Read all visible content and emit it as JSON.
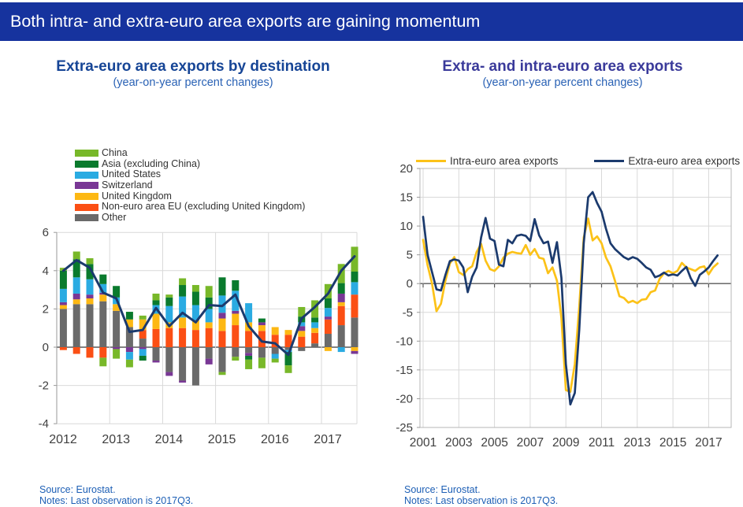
{
  "header": {
    "title": "Both intra- and extra-euro area exports are gaining momentum",
    "bg_color": "#16339e",
    "text_color": "#ffffff"
  },
  "left_panel": {
    "title": "Extra-euro area exports by destination",
    "subtitle": "(year-on-year percent changes)",
    "title_color": "#164596",
    "subtitle_color": "#2a62b5",
    "source": "Source: Eurostat.",
    "notes": "Notes: Last observation is 2017Q3."
  },
  "right_panel": {
    "title": "Extra- and intra-euro area exports",
    "subtitle": "(year-on-year percent changes)",
    "title_color": "#3a3a9a",
    "subtitle_color": "#2a62b5",
    "source": "Source: Eurostat.",
    "notes": "Notes: Last observation is 2017Q3."
  },
  "footnote_color": "#1d5fb5",
  "chart_data": [
    {
      "type": "bar",
      "stacked": true,
      "title": "Extra-euro area exports by destination",
      "subtitle": "(year-on-year percent changes)",
      "categories": [
        "2012Q1",
        "2012Q2",
        "2012Q3",
        "2012Q4",
        "2013Q1",
        "2013Q2",
        "2013Q3",
        "2013Q4",
        "2014Q1",
        "2014Q2",
        "2014Q3",
        "2014Q4",
        "2015Q1",
        "2015Q2",
        "2015Q3",
        "2015Q4",
        "2016Q1",
        "2016Q2",
        "2016Q3",
        "2016Q4",
        "2017Q1",
        "2017Q2",
        "2017Q3"
      ],
      "x_tick_labels": [
        "2012",
        "2013",
        "2014",
        "2015",
        "2016",
        "2017"
      ],
      "ylim": [
        -4,
        6
      ],
      "yticks": [
        6,
        4,
        2,
        0,
        -2,
        -4
      ],
      "grid": true,
      "legend_position": "top-left",
      "series": [
        {
          "name": "Other",
          "color": "#6a6a6a",
          "values": [
            2.0,
            2.25,
            2.25,
            2.4,
            1.9,
            1.05,
            0.45,
            -0.7,
            -1.3,
            -1.75,
            -2.0,
            -0.6,
            -1.3,
            -0.5,
            -0.3,
            -0.55,
            -0.35,
            -0.15,
            -0.2,
            0.2,
            0.7,
            1.15,
            1.55
          ]
        },
        {
          "name": "Non-euro area EU (excluding United Kingdom)",
          "color": "#fb4f14",
          "values": [
            -0.15,
            -0.35,
            -0.55,
            -0.55,
            0,
            0,
            0.45,
            0.95,
            1.0,
            1.0,
            0.9,
            1.0,
            0.85,
            1.15,
            0.85,
            0.85,
            0.65,
            0.65,
            0.55,
            0.55,
            0.75,
            1.0,
            1.2
          ]
        },
        {
          "name": "United Kingdom",
          "color": "#fdb813",
          "values": [
            0.2,
            0.25,
            0.3,
            0.35,
            0.35,
            0.4,
            0.55,
            0.8,
            0.3,
            0.55,
            0.5,
            0.3,
            0.65,
            0.6,
            0.45,
            0.3,
            0.4,
            0.25,
            0.3,
            0.25,
            -0.2,
            0.2,
            -0.2
          ]
        },
        {
          "name": "Switzerland",
          "color": "#793795",
          "values": [
            0.15,
            0.3,
            0.2,
            0.1,
            -0.1,
            -0.25,
            -0.1,
            -0.1,
            -0.2,
            -0.1,
            0,
            -0.3,
            0.3,
            0.15,
            -0.15,
            0.15,
            0,
            0,
            0.25,
            0,
            0.15,
            0.45,
            -0.15
          ]
        },
        {
          "name": "United States",
          "color": "#2aabe2",
          "values": [
            0.7,
            0.85,
            0.8,
            0.45,
            0.35,
            -0.4,
            -0.35,
            0.45,
            0.85,
            1.1,
            0.8,
            0.7,
            0.9,
            1.05,
            1.0,
            0,
            -0.25,
            -0.1,
            0.2,
            0.3,
            0.45,
            -0.25,
            0.65
          ]
        },
        {
          "name": "Asia (excluding China)",
          "color": "#0a7a2d",
          "values": [
            0.95,
            0.95,
            0.8,
            0.5,
            0.6,
            0.4,
            -0.25,
            0.25,
            0.45,
            0.6,
            0.7,
            0.6,
            0.95,
            0.55,
            -0.2,
            0.2,
            0,
            -0.7,
            0.3,
            0.25,
            0.5,
            0.55,
            0.55
          ]
        },
        {
          "name": "China",
          "color": "#78b829",
          "values": [
            0.15,
            0.4,
            0.3,
            -0.45,
            -0.5,
            -0.4,
            0.2,
            0.35,
            0.15,
            0.35,
            0.35,
            0.6,
            -0.15,
            -0.2,
            -0.5,
            -0.55,
            -0.2,
            -0.4,
            0.5,
            0.9,
            0.75,
            1.0,
            1.3
          ]
        }
      ],
      "line_series": {
        "name": "total-extra-euro-exports-line",
        "color": "#1b3a6d",
        "values": [
          4.0,
          4.55,
          4.15,
          2.85,
          2.55,
          0.8,
          0.9,
          2.05,
          1.1,
          1.8,
          1.3,
          2.2,
          2.15,
          2.75,
          1.1,
          0.3,
          0.2,
          -0.4,
          1.5,
          2.1,
          2.8,
          4.0,
          4.75
        ]
      }
    },
    {
      "type": "line",
      "title": "Extra- and intra-euro area exports",
      "subtitle": "(year-on-year percent changes)",
      "x_start": "2001Q1",
      "x_end": "2017Q3",
      "frequency": "quarterly",
      "x_tick_labels": [
        "2001",
        "2003",
        "2005",
        "2007",
        "2009",
        "2011",
        "2013",
        "2015",
        "2017"
      ],
      "ylim": [
        -25,
        20
      ],
      "yticks": [
        20,
        15,
        10,
        5,
        0,
        -5,
        -10,
        -15,
        -20,
        -25
      ],
      "grid": true,
      "legend_position": "top",
      "series": [
        {
          "name": "Intra-euro area exports",
          "color": "#fcc218",
          "values": [
            7.6,
            3.2,
            0.0,
            -4.8,
            -3.5,
            0.5,
            3.5,
            4.6,
            2.0,
            1.5,
            2.5,
            3.0,
            5.5,
            6.9,
            4.0,
            2.5,
            2.2,
            3.0,
            4.5,
            5.2,
            5.5,
            5.3,
            5.2,
            6.7,
            5.0,
            6.0,
            4.5,
            4.3,
            1.8,
            2.8,
            0.5,
            -6.0,
            -18.5,
            -18.8,
            -14.0,
            -4.0,
            8.0,
            11.3,
            7.5,
            8.2,
            7.0,
            4.5,
            3.0,
            0.5,
            -2.2,
            -2.5,
            -3.3,
            -3.0,
            -3.4,
            -2.8,
            -2.7,
            -1.5,
            -1.2,
            0.8,
            1.8,
            2.2,
            1.8,
            2.2,
            3.6,
            2.8,
            2.5,
            2.2,
            2.8,
            3.0,
            1.6,
            2.8,
            3.5
          ]
        },
        {
          "name": "Extra-euro area exports",
          "color": "#1b3a6d",
          "values": [
            11.6,
            5.0,
            2.0,
            -1.0,
            -1.2,
            1.5,
            3.9,
            4.2,
            4.0,
            2.8,
            -1.5,
            1.2,
            2.8,
            8.0,
            11.4,
            7.8,
            7.4,
            3.3,
            3.0,
            7.6,
            7.0,
            8.3,
            8.5,
            8.3,
            7.4,
            11.2,
            8.4,
            7.0,
            7.3,
            3.6,
            7.2,
            1.0,
            -14.0,
            -21.0,
            -19.0,
            -8.0,
            7.0,
            15.0,
            15.9,
            14.0,
            12.5,
            9.5,
            7.0,
            6.0,
            5.3,
            4.6,
            4.2,
            4.6,
            4.3,
            3.6,
            2.8,
            2.4,
            1.1,
            1.4,
            1.9,
            1.4,
            1.6,
            1.4,
            2.2,
            2.9,
            0.9,
            -0.4,
            1.5,
            2.1,
            2.8,
            3.9,
            4.9
          ]
        }
      ]
    }
  ]
}
